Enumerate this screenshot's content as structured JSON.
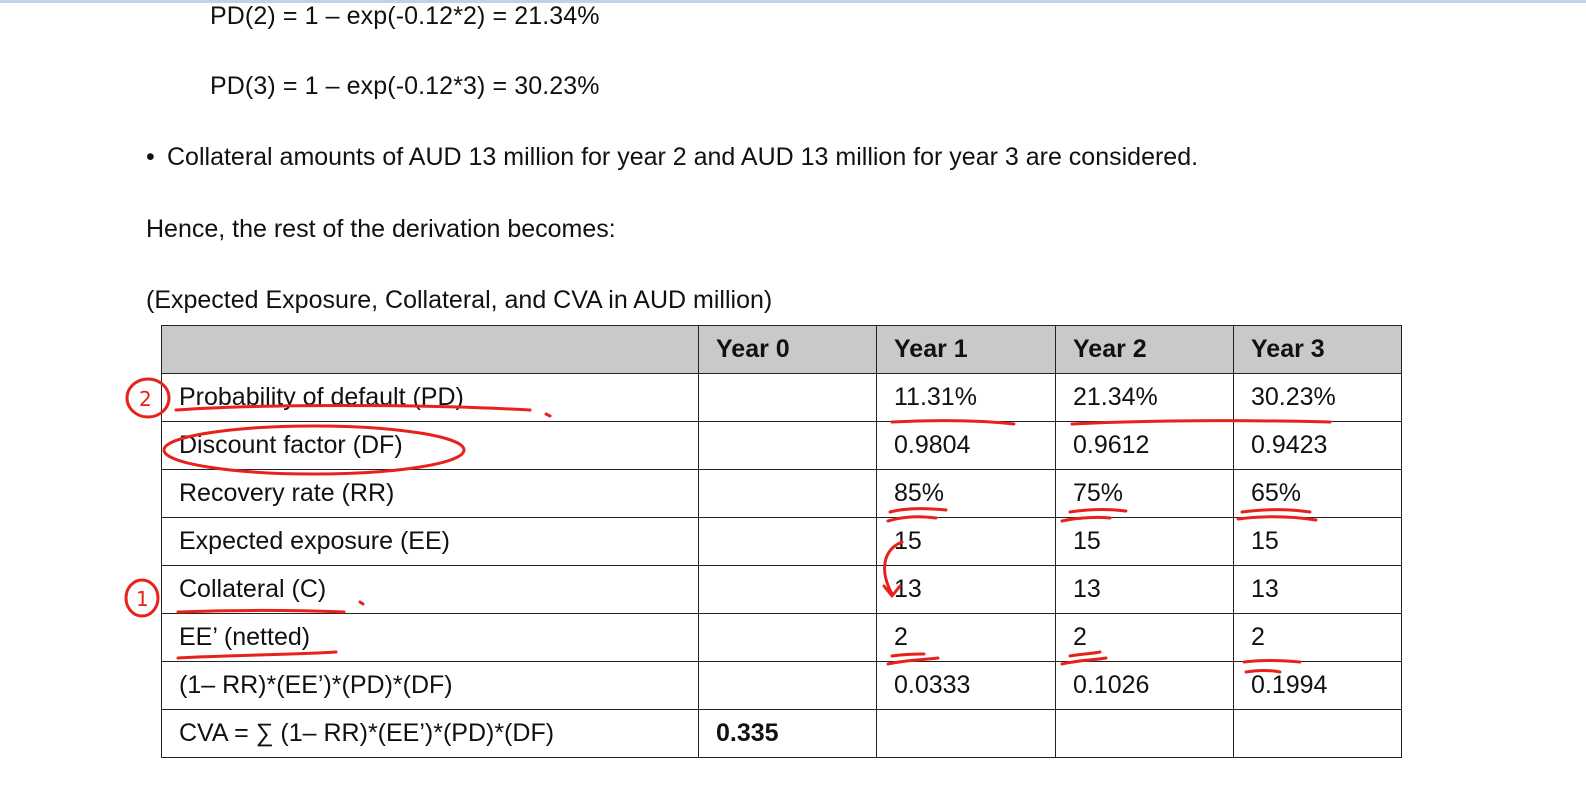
{
  "formulas": [
    "PD(2) = 1 – exp(-0.12*2) = 21.34%",
    "PD(3) = 1 – exp(-0.12*3) = 30.23%"
  ],
  "bullet": {
    "symbol": "•",
    "text": "Collateral amounts of AUD 13 million for year 2 and AUD 13 million for year 3 are considered."
  },
  "hence_text": "Hence, the rest of the derivation becomes:",
  "units_text": "(Expected Exposure, Collateral, and CVA in AUD million)",
  "table": {
    "headers": [
      "",
      "Year 0",
      "Year 1",
      "Year 2",
      "Year 3"
    ],
    "rows": [
      {
        "label": "Probability of default (PD)",
        "cells": [
          "",
          "11.31%",
          "21.34%",
          "30.23%"
        ]
      },
      {
        "label": "Discount factor (DF)",
        "cells": [
          "",
          "0.9804",
          "0.9612",
          "0.9423"
        ]
      },
      {
        "label": "Recovery rate (RR)",
        "cells": [
          "",
          "85%",
          "75%",
          "65%"
        ]
      },
      {
        "label": "Expected exposure (EE)",
        "cells": [
          "",
          "15",
          "15",
          "15"
        ]
      },
      {
        "label": "Collateral (C)",
        "cells": [
          "",
          "13",
          "13",
          "13"
        ]
      },
      {
        "label": "EE’ (netted)",
        "cells": [
          "",
          "2",
          "2",
          "2"
        ]
      },
      {
        "label": "(1– RR)*(EE’)*(PD)*(DF)",
        "cells": [
          "",
          "0.0333",
          "0.1026",
          "0.1994"
        ]
      },
      {
        "label": "CVA = ∑ (1– RR)*(EE’)*(PD)*(DF)",
        "cells": [
          "0.335",
          "",
          "",
          ""
        ]
      }
    ]
  },
  "annotations": {
    "color": "#e8211a",
    "marks": [
      "2",
      "1"
    ]
  }
}
